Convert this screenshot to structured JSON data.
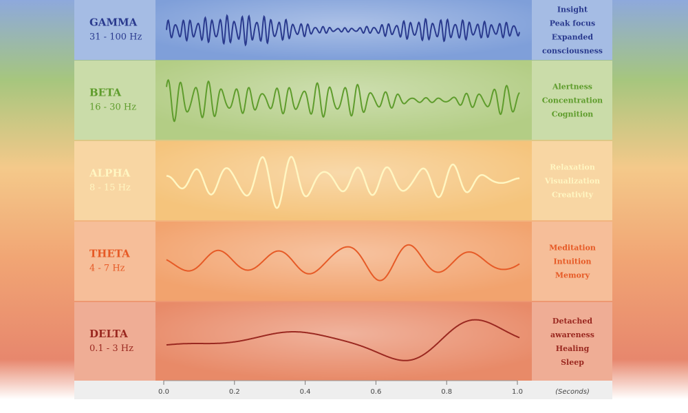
{
  "bands": [
    {
      "name": "GAMMA",
      "range": "31 - 100 Hz",
      "effects": [
        "Insight",
        "Peak focus",
        "Expanded",
        "consciousness"
      ]
    },
    {
      "name": "BETA",
      "range": "16 - 30 Hz",
      "effects": [
        "Alertness",
        "Concentration",
        "Cognition"
      ]
    },
    {
      "name": "ALPHA",
      "range": "8 - 15 Hz",
      "effects": [
        "Relaxation",
        "Visualization",
        "Creativity"
      ]
    },
    {
      "name": "THETA",
      "range": "4 - 7 Hz",
      "effects": [
        "Meditation",
        "Intuition",
        "Memory"
      ]
    },
    {
      "name": "DELTA",
      "range": "0.1 - 3 Hz",
      "effects": [
        "Detached",
        "awareness",
        "Healing",
        "Sleep"
      ]
    }
  ],
  "axis": {
    "ticks": [
      "0.0",
      "0.2",
      "0.4",
      "0.6",
      "0.8",
      "1.0"
    ],
    "unit": "(Seconds)"
  }
}
